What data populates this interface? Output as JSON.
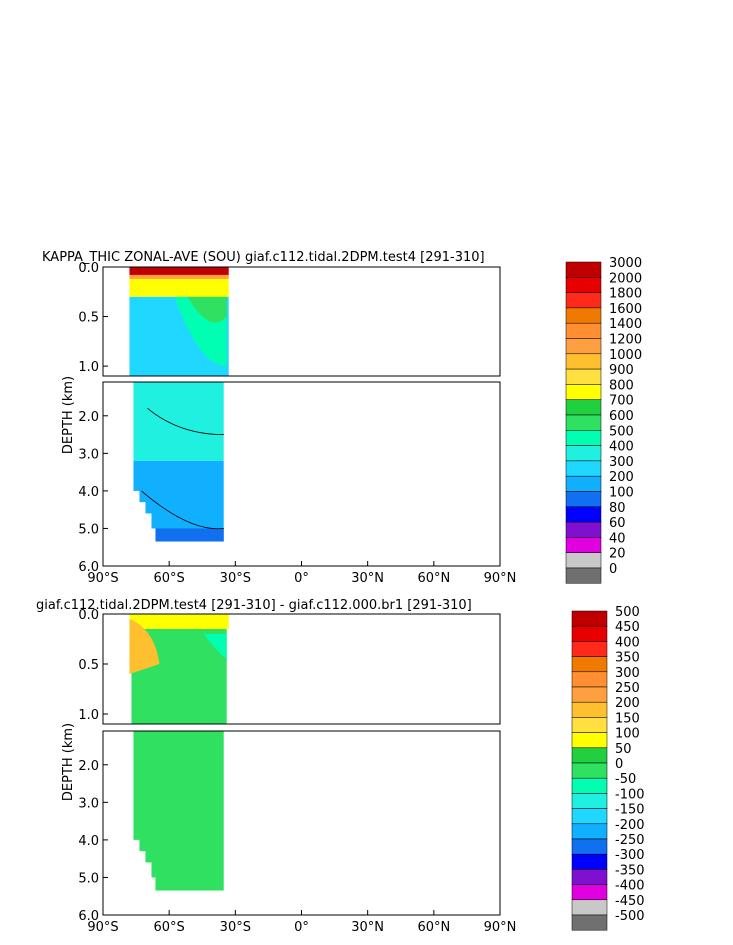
{
  "chart_data": [
    {
      "type": "heatmap",
      "title": "KAPPA_THIC ZONAL-AVE (SOU) giaf.c112.tidal.2DPM.test4 [291-310]",
      "ylabel": "DEPTH (km)",
      "x_ticks": [
        "90°S",
        "60°S",
        "30°S",
        "0°",
        "30°N",
        "60°N",
        "90°N"
      ],
      "y_ticks_upper": [
        "0.0",
        "0.5",
        "1.0"
      ],
      "y_ticks_lower": [
        "2.0",
        "3.0",
        "4.0",
        "5.0",
        "6.0"
      ],
      "xlim": [
        -90,
        90
      ],
      "ylim_upper": [
        0.0,
        1.1
      ],
      "ylim_lower": [
        1.1,
        6.0
      ],
      "data_extent_lat": [
        -78,
        -33
      ],
      "colorbar": {
        "labels": [
          "3000",
          "2000",
          "1800",
          "1600",
          "1400",
          "1200",
          "1000",
          "900",
          "800",
          "700",
          "600",
          "500",
          "400",
          "300",
          "200",
          "100",
          "80",
          "60",
          "40",
          "20",
          "0"
        ],
        "colors": [
          "#c00000",
          "#e80000",
          "#ff2a1a",
          "#f07a00",
          "#ff8f30",
          "#ffa040",
          "#ffc030",
          "#ffe040",
          "#ffff00",
          "#20d040",
          "#30e060",
          "#00ffb0",
          "#20f0e0",
          "#20d8ff",
          "#10b0ff",
          "#1070f0",
          "#0000ff",
          "#8010d0",
          "#e000e0",
          "#c8c8c8",
          "#707070"
        ]
      }
    },
    {
      "type": "heatmap",
      "title": "giaf.c112.tidal.2DPM.test4 [291-310] - giaf.c112.000.br1 [291-310]",
      "ylabel": "DEPTH (km)",
      "x_ticks": [
        "90°S",
        "60°S",
        "30°S",
        "0°",
        "30°N",
        "60°N",
        "90°N"
      ],
      "y_ticks_upper": [
        "0.0",
        "0.5",
        "1.0"
      ],
      "y_ticks_lower": [
        "2.0",
        "3.0",
        "4.0",
        "5.0",
        "6.0"
      ],
      "xlim": [
        -90,
        90
      ],
      "ylim_upper": [
        0.0,
        1.1
      ],
      "ylim_lower": [
        1.1,
        6.0
      ],
      "data_extent_lat": [
        -78,
        -33
      ],
      "colorbar": {
        "labels": [
          "500",
          "450",
          "400",
          "350",
          "300",
          "250",
          "200",
          "150",
          "100",
          "50",
          "0",
          "-50",
          "-100",
          "-150",
          "-200",
          "-250",
          "-300",
          "-350",
          "-400",
          "-450",
          "-500"
        ],
        "colors": [
          "#c00000",
          "#e80000",
          "#ff2a1a",
          "#f07a00",
          "#ff8f30",
          "#ffa040",
          "#ffc030",
          "#ffe040",
          "#ffff00",
          "#20d040",
          "#30e060",
          "#00ffb0",
          "#20f0e0",
          "#20d8ff",
          "#10b0ff",
          "#1070f0",
          "#0000ff",
          "#8010d0",
          "#e000e0",
          "#c8c8c8",
          "#707070"
        ]
      }
    }
  ]
}
